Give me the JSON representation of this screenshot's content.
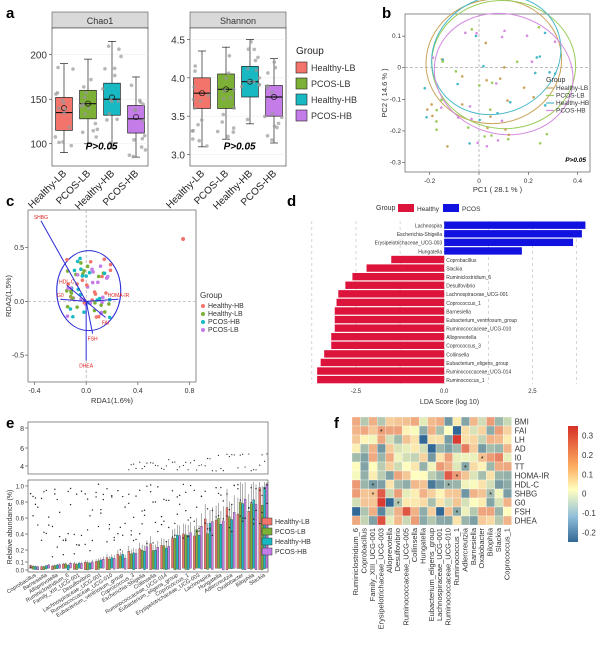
{
  "panels": [
    "a",
    "b",
    "c",
    "d",
    "e",
    "f"
  ],
  "chart_data": [
    {
      "panel": "a",
      "type": "box",
      "groups": [
        "Healthy-LB",
        "PCOS-LB",
        "Healthy-HB",
        "PCOS-HB"
      ],
      "colors": [
        "#f2746b",
        "#7db037",
        "#18b9c2",
        "#c37ce8"
      ],
      "legend_title": "Group",
      "facets": [
        {
          "title": "Chao1",
          "yticks": [
            100,
            150,
            200
          ],
          "ylim": [
            75,
            230
          ],
          "pval": "P>0.05",
          "boxes": [
            {
              "q1": 115,
              "med": 135,
              "q3": 152,
              "lo": 90,
              "hi": 190,
              "mean": 140
            },
            {
              "q1": 128,
              "med": 145,
              "q3": 160,
              "lo": 100,
              "hi": 195,
              "mean": 145
            },
            {
              "q1": 132,
              "med": 150,
              "q3": 168,
              "lo": 95,
              "hi": 215,
              "mean": 152
            },
            {
              "q1": 112,
              "med": 128,
              "q3": 143,
              "lo": 85,
              "hi": 175,
              "mean": 130
            }
          ]
        },
        {
          "title": "Shannon",
          "yticks": [
            3.0,
            3.5,
            4.0,
            4.5
          ],
          "ylim": [
            2.85,
            4.65
          ],
          "pval": "P>0.05",
          "boxes": [
            {
              "q1": 3.6,
              "med": 3.8,
              "q3": 4.0,
              "lo": 3.1,
              "hi": 4.35,
              "mean": 3.8
            },
            {
              "q1": 3.6,
              "med": 3.85,
              "q3": 4.05,
              "lo": 3.2,
              "hi": 4.4,
              "mean": 3.85
            },
            {
              "q1": 3.75,
              "med": 3.95,
              "q3": 4.15,
              "lo": 3.4,
              "hi": 4.5,
              "mean": 3.95
            },
            {
              "q1": 3.5,
              "med": 3.75,
              "q3": 3.9,
              "lo": 3.15,
              "hi": 4.25,
              "mean": 3.75
            }
          ]
        }
      ]
    },
    {
      "panel": "b",
      "type": "scatter",
      "xlabel": "PC1 ( 28.1 % )",
      "ylabel": "PC2 ( 14.6 % )",
      "xticks": [
        "-0.2",
        "0",
        "0.2",
        "0.4"
      ],
      "yticks": [
        "0.1",
        "0",
        "-0.1",
        "-0.2",
        "-0.3"
      ],
      "legend_title": "Group",
      "legend": [
        "Healthy-LB",
        "PCOS-LB",
        "Healthy-HB",
        "PCOS-HB"
      ],
      "pval": "P>0.05"
    },
    {
      "panel": "c",
      "type": "scatter",
      "xlabel": "RDA1(1.6%)",
      "ylabel": "RDA2(1.5%)",
      "xticks": [
        "-0.4",
        "0.0",
        "0.4",
        "0.8"
      ],
      "yticks": [
        "0.5",
        "0.0",
        "-0.5"
      ],
      "legend_title": "Group",
      "legend": [
        "Healthy-HB",
        "Healthy-LB",
        "PCOS-HB",
        "PCOS-LB"
      ],
      "arrows": [
        "SHBG",
        "HDL-C",
        "G0",
        "FAI",
        "HOMA-IR",
        "FSH",
        "DHEA"
      ]
    },
    {
      "panel": "d",
      "type": "bar",
      "orientation": "horizontal",
      "legend_title": "Group",
      "legend": [
        "Healthy",
        "PCOS"
      ],
      "xlabel": "LDA Score (log 10)",
      "xticks": [
        "-2.5",
        "0.0",
        "2.5"
      ],
      "bars": [
        {
          "label": "Lachnospira",
          "value": 4.0,
          "group": "PCOS"
        },
        {
          "label": "Escherichia-Shigella",
          "value": 3.9,
          "group": "PCOS"
        },
        {
          "label": "Erysipelotrichaceae_UCG-003",
          "value": 3.65,
          "group": "PCOS"
        },
        {
          "label": "Hungatella",
          "value": 2.2,
          "group": "PCOS"
        },
        {
          "label": "Coprobacillus",
          "value": -1.5,
          "group": "Healthy"
        },
        {
          "label": "Slackia",
          "value": -2.2,
          "group": "Healthy"
        },
        {
          "label": "Ruminiclostridium_6",
          "value": -2.6,
          "group": "Healthy"
        },
        {
          "label": "Desulfovibrio",
          "value": -2.8,
          "group": "Healthy"
        },
        {
          "label": "Lachnospiraceae_UCG-001",
          "value": -3.0,
          "group": "Healthy"
        },
        {
          "label": "Coprococcus_1",
          "value": -3.05,
          "group": "Healthy"
        },
        {
          "label": "Barnesiella",
          "value": -3.1,
          "group": "Healthy"
        },
        {
          "label": "Eubacterium_ventriosum_group",
          "value": -3.1,
          "group": "Healthy"
        },
        {
          "label": "Ruminococcaceae_UCG-010",
          "value": -3.1,
          "group": "Healthy"
        },
        {
          "label": "Alloprevotella",
          "value": -3.2,
          "group": "Healthy"
        },
        {
          "label": "Coprococcus_3",
          "value": -3.2,
          "group": "Healthy"
        },
        {
          "label": "Collinsella",
          "value": -3.4,
          "group": "Healthy"
        },
        {
          "label": "Eubacterium_eligens_group",
          "value": -3.5,
          "group": "Healthy"
        },
        {
          "label": "Ruminococcaceae_UCG-014",
          "value": -3.6,
          "group": "Healthy"
        },
        {
          "label": "Ruminococcus_1",
          "value": -3.6,
          "group": "Healthy"
        }
      ]
    },
    {
      "panel": "e",
      "type": "box",
      "ylabel": "Relative abundance (%)",
      "upper_yticks": [
        "8",
        "6",
        "4"
      ],
      "lower_yticks": [
        "1.0",
        "0.8",
        "0.6",
        "0.4",
        "0.2",
        "0.1",
        "0.0"
      ],
      "legend": [
        "Healthy-LB",
        "PCOS-LB",
        "Healthy-HB",
        "PCOS-HB"
      ],
      "xlabels": [
        "Coprobacillus",
        "Barnesiella",
        "Alloprevotella",
        "Ruminiclostridium_6",
        "Family_XIII_UCG-001",
        "Desulfovibrio",
        "Lachnospiraceae_UCG-001",
        "Ruminococcaceae_UCG-010",
        "Eubacterium_ventriosum_group",
        "Coprococcus_3",
        "Escherichia-Shigella",
        "Collinsella",
        "Ruminococcaceae_UCG-014",
        "Eubacterium_eligens_group",
        "Coprococcus_1",
        "Erysipelotrichaceae_UCG-003",
        "Lachnospira",
        "Hungatella",
        "Adlercreutzia",
        "Oxalobacter",
        "Bilophila",
        "Slackia"
      ]
    },
    {
      "panel": "f",
      "type": "heatmap",
      "rows": [
        "BMI",
        "FAI",
        "LH",
        "AD",
        "I0",
        "TT",
        "HOMA-IR",
        "HDL-C",
        "SHBG",
        "G0",
        "FSH",
        "DHEA"
      ],
      "cols": [
        "Ruminiclostridium_6",
        "Coprobacillus",
        "Family_XIII_UCG-001",
        "Erysipelotrichaceae_UCG-003",
        "Alloprevotella",
        "Desulfovibrio",
        "Ruminococcaceae_UCG-005",
        "Collinsella",
        "Hungatella",
        "Eubacterium_eligens_group",
        "Lachnospiraceae_UCG-001",
        "Ruminococcaceae_UCG-010",
        "Ruminococcus_1",
        "Adlercreutzia",
        "Barnesiella",
        "Oxalobacter",
        "Bilophila",
        "Slackia",
        "Coprococcus_1"
      ],
      "colorbar_ticks": [
        "0.3",
        "0.2",
        "0.1",
        "0",
        "-0.1",
        "-0.2"
      ],
      "stars": [
        [
          1,
          3
        ],
        [
          4,
          15
        ],
        [
          5,
          13
        ],
        [
          6,
          12
        ],
        [
          7,
          2
        ],
        [
          7,
          11
        ],
        [
          8,
          2
        ],
        [
          8,
          16
        ],
        [
          9,
          5
        ],
        [
          10,
          12
        ]
      ]
    }
  ]
}
